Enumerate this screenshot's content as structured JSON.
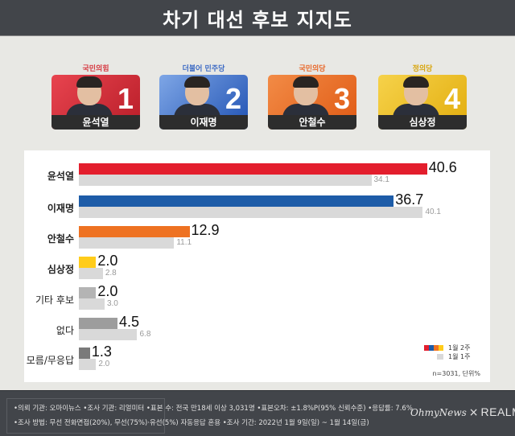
{
  "header": {
    "title": "차기 대선 후보 지지도"
  },
  "candidates": [
    {
      "number": "1",
      "name": "윤석열",
      "party": "국민의힘",
      "party_color": "#d6373f",
      "card_color_a": "#e8444f",
      "card_color_b": "#b81d28"
    },
    {
      "number": "2",
      "name": "이재명",
      "party": "더불어 민주당",
      "party_color": "#3d6bc4",
      "card_color_a": "#7ea6e6",
      "card_color_b": "#2052b3"
    },
    {
      "number": "3",
      "name": "안철수",
      "party": "국민의당",
      "party_color": "#e8682a",
      "card_color_a": "#f28b46",
      "card_color_b": "#e05a14"
    },
    {
      "number": "4",
      "name": "심상정",
      "party": "정의당",
      "party_color": "#d8a50c",
      "card_color_a": "#f6d24a",
      "card_color_b": "#e2ad0e"
    }
  ],
  "legend": {
    "current": "1월 2주",
    "previous": "1월 1주",
    "current_colors": [
      "#e31e2d",
      "#1d5ca8",
      "#ee7222",
      "#ffcc1a"
    ],
    "previous_color": "#d9d9d9"
  },
  "note": "n=3031, 단위%",
  "footer": {
    "line1": "•의뢰 기관: 오마이뉴스 •조사 기관: 리얼미터 •표본 수: 전국 만18세 이상 3,031명 •표본오차: ±1.8%P(95% 신뢰수준) •응답률: 7.6%",
    "line2": "•조사 방법: 무선 전화면접(20%), 무선(75%)·유선(5%) 자동응답 혼용  •조사 기간: 2022년 1월 9일(일) ~ 1월 14일(금)",
    "logo_left": "OhmyNews",
    "logo_x": "×",
    "logo_right": "REALMETER"
  },
  "chart_data": {
    "type": "bar",
    "orientation": "horizontal",
    "title": "차기 대선 후보 지지도",
    "categories": [
      "윤석열",
      "이재명",
      "안철수",
      "심상정",
      "기타 후보",
      "없다",
      "모름/무응답"
    ],
    "series": [
      {
        "name": "1월 2주",
        "values": [
          40.6,
          36.7,
          12.9,
          2.0,
          2.0,
          4.5,
          1.3
        ],
        "colors": [
          "#e31e2d",
          "#1d5ca8",
          "#ee7222",
          "#ffcc1a",
          "#b4b4b4",
          "#9d9d9d",
          "#7a7a7a"
        ]
      },
      {
        "name": "1월 1주",
        "values": [
          34.1,
          40.1,
          11.1,
          2.8,
          3.0,
          6.8,
          2.0
        ],
        "color": "#d9d9d9"
      }
    ],
    "xlabel": "",
    "ylabel": "",
    "unit": "%",
    "sample": "n=3031",
    "grid": false,
    "legend_position": "bottom-right"
  }
}
